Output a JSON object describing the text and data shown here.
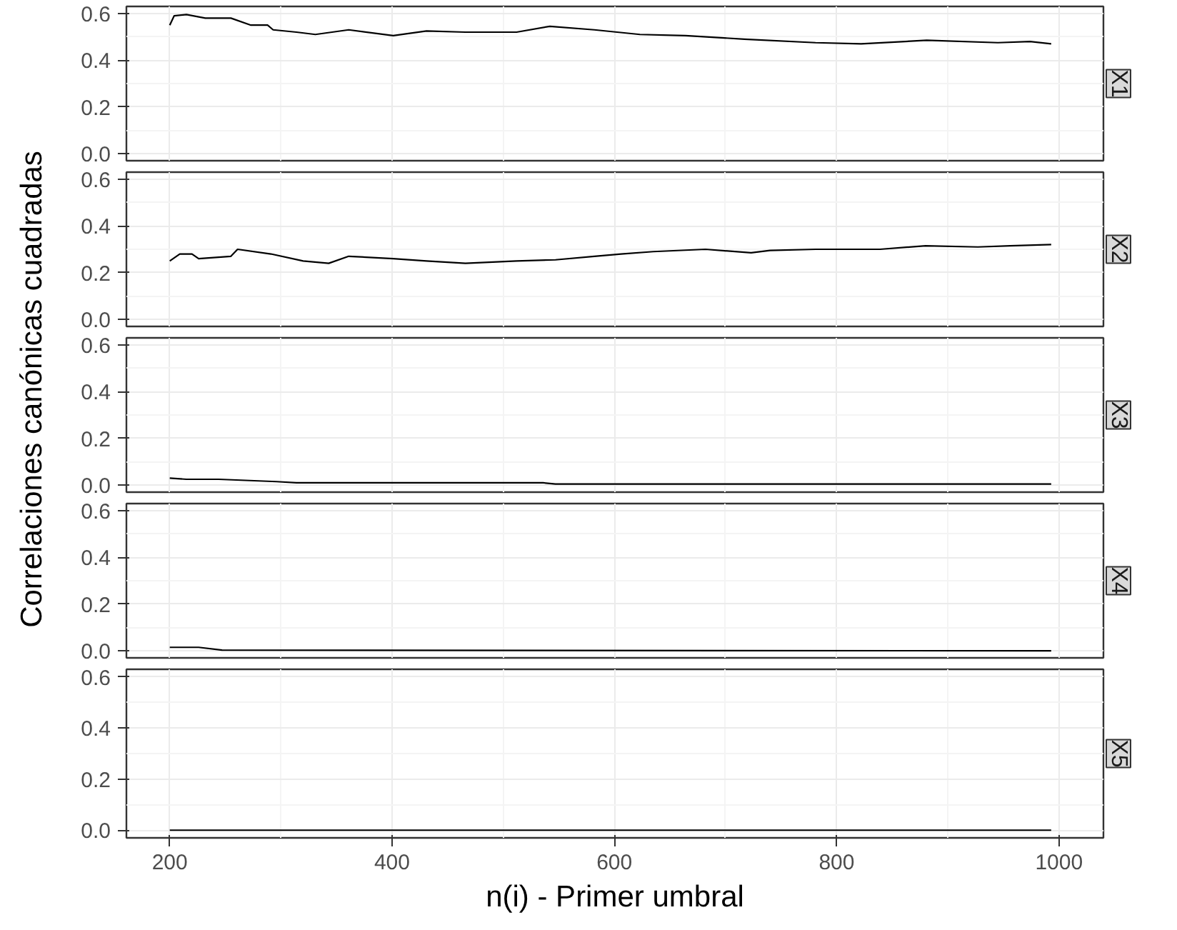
{
  "chart_data": [
    {
      "type": "line",
      "title": "X1",
      "xlim": [
        161,
        1040
      ],
      "ylim": [
        -0.03,
        0.63
      ],
      "xticks": [
        200,
        400,
        600,
        800,
        1000
      ],
      "yticks": [
        {
          "value": 0,
          "label": "0.0"
        },
        {
          "value": 0.2,
          "label": "0.2"
        },
        {
          "value": 0.4,
          "label": "0.4"
        },
        {
          "value": 0.6,
          "label": "0.6"
        }
      ],
      "grid": true,
      "tick_labels": "y",
      "series": [
        {
          "color": "#000000",
          "x": [
            200,
            204,
            215,
            232,
            255,
            273,
            288,
            293,
            314,
            331,
            361,
            401,
            431,
            466,
            512,
            542,
            582,
            623,
            664,
            717,
            781,
            822,
            881,
            945,
            974,
            993
          ],
          "values": [
            0.55,
            0.59,
            0.595,
            0.58,
            0.58,
            0.55,
            0.55,
            0.53,
            0.52,
            0.51,
            0.53,
            0.505,
            0.525,
            0.52,
            0.52,
            0.545,
            0.53,
            0.51,
            0.505,
            0.49,
            0.475,
            0.47,
            0.485,
            0.475,
            0.48,
            0.47
          ]
        }
      ]
    },
    {
      "type": "line",
      "title": "X2",
      "xlim": [
        161,
        1040
      ],
      "ylim": [
        -0.03,
        0.63
      ],
      "xticks": [
        200,
        400,
        600,
        800,
        1000
      ],
      "yticks": [
        {
          "value": 0,
          "label": "0.0"
        },
        {
          "value": 0.2,
          "label": "0.2"
        },
        {
          "value": 0.4,
          "label": "0.4"
        },
        {
          "value": 0.6,
          "label": "0.6"
        }
      ],
      "grid": true,
      "tick_labels": "y",
      "series": [
        {
          "color": "#000000",
          "x": [
            200,
            209,
            220,
            226,
            255,
            261,
            291,
            320,
            343,
            361,
            401,
            431,
            466,
            512,
            547,
            582,
            606,
            635,
            682,
            723,
            740,
            781,
            839,
            880,
            927,
            956,
            993
          ],
          "values": [
            0.25,
            0.28,
            0.28,
            0.26,
            0.27,
            0.3,
            0.28,
            0.25,
            0.24,
            0.27,
            0.26,
            0.25,
            0.24,
            0.25,
            0.255,
            0.27,
            0.28,
            0.29,
            0.3,
            0.285,
            0.295,
            0.3,
            0.3,
            0.315,
            0.31,
            0.315,
            0.32
          ]
        }
      ]
    },
    {
      "type": "line",
      "title": "X3",
      "ylabel": "Correlaciones canónicas cuadradas",
      "xlim": [
        161,
        1040
      ],
      "ylim": [
        -0.03,
        0.63
      ],
      "xticks": [
        200,
        400,
        600,
        800,
        1000
      ],
      "yticks": [
        {
          "value": 0,
          "label": "0.0"
        },
        {
          "value": 0.2,
          "label": "0.2"
        },
        {
          "value": 0.4,
          "label": "0.4"
        },
        {
          "value": 0.6,
          "label": "0.6"
        }
      ],
      "grid": true,
      "tick_labels": "y",
      "series": [
        {
          "color": "#000000",
          "x": [
            200,
            215,
            244,
            296,
            314,
            401,
            536,
            547,
            993
          ],
          "values": [
            0.03,
            0.025,
            0.025,
            0.015,
            0.01,
            0.01,
            0.01,
            0.005,
            0.005
          ]
        }
      ]
    },
    {
      "type": "line",
      "title": "X4",
      "xlim": [
        161,
        1040
      ],
      "ylim": [
        -0.03,
        0.63
      ],
      "xticks": [
        200,
        400,
        600,
        800,
        1000
      ],
      "yticks": [
        {
          "value": 0,
          "label": "0.0"
        },
        {
          "value": 0.2,
          "label": "0.2"
        },
        {
          "value": 0.4,
          "label": "0.4"
        },
        {
          "value": 0.6,
          "label": "0.6"
        }
      ],
      "grid": true,
      "tick_labels": "y",
      "series": [
        {
          "color": "#000000",
          "x": [
            200,
            226,
            247,
            993
          ],
          "values": [
            0.015,
            0.015,
            0.003,
            0.0
          ]
        }
      ]
    },
    {
      "type": "line",
      "title": "X5",
      "xlabel": "n(i) - Primer umbral",
      "xlim": [
        161,
        1040
      ],
      "ylim": [
        -0.03,
        0.63
      ],
      "xticks": [
        200,
        400,
        600,
        800,
        1000
      ],
      "yticks": [
        {
          "value": 0,
          "label": "0.0"
        },
        {
          "value": 0.2,
          "label": "0.2"
        },
        {
          "value": 0.4,
          "label": "0.4"
        },
        {
          "value": 0.6,
          "label": "0.6"
        }
      ],
      "grid": true,
      "series": [
        {
          "color": "#000000",
          "x": [
            200,
            993
          ],
          "values": [
            0.0,
            0.0
          ]
        }
      ]
    }
  ]
}
